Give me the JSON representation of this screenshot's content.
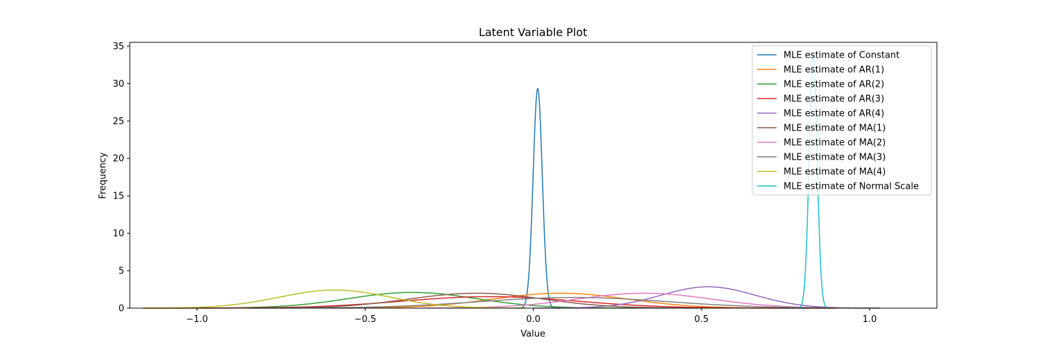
{
  "chart_data": {
    "type": "line",
    "title": "Latent Variable Plot",
    "xlabel": "Value",
    "ylabel": "Frequency",
    "xlim": [
      -1.2,
      1.2
    ],
    "ylim": [
      0,
      35.5
    ],
    "xticks": [
      -1.0,
      -0.5,
      0.0,
      0.5,
      1.0
    ],
    "xtick_labels": [
      "−1.0",
      "−0.5",
      "0.0",
      "0.5",
      "1.0"
    ],
    "yticks": [
      0,
      5,
      10,
      15,
      20,
      25,
      30,
      35
    ],
    "ytick_labels": [
      "0",
      "5",
      "10",
      "15",
      "20",
      "25",
      "30",
      "35"
    ],
    "grid": false,
    "legend_position": "top-right",
    "series": [
      {
        "name": "MLE estimate of Constant",
        "color": "#1f77b4",
        "mean": 0.013,
        "sd": 0.0136,
        "range": [
          -0.05,
          0.08
        ]
      },
      {
        "name": "MLE estimate of AR(1)",
        "color": "#ff7f0e",
        "mean": 0.08,
        "sd": 0.2,
        "range": [
          -0.6,
          0.75
        ]
      },
      {
        "name": "MLE estimate of AR(2)",
        "color": "#2ca02c",
        "mean": -0.36,
        "sd": 0.19,
        "range": [
          -1.0,
          0.3
        ]
      },
      {
        "name": "MLE estimate of AR(3)",
        "color": "#d62728",
        "mean": -0.13,
        "sd": 0.26,
        "range": [
          -1.16,
          0.9
        ]
      },
      {
        "name": "MLE estimate of AR(4)",
        "color": "#9467bd",
        "mean": 0.52,
        "sd": 0.14,
        "range": [
          0.0,
          1.03
        ]
      },
      {
        "name": "MLE estimate of MA(1)",
        "color": "#8c564b",
        "mean": -0.17,
        "sd": 0.2,
        "range": [
          -0.85,
          0.5
        ]
      },
      {
        "name": "MLE estimate of MA(2)",
        "color": "#e377c2",
        "mean": 0.33,
        "sd": 0.2,
        "range": [
          -0.33,
          1.0
        ]
      },
      {
        "name": "MLE estimate of MA(3)",
        "color": "#7f7f7f",
        "mean": 0.12,
        "sd": 0.28,
        "range": [
          -0.8,
          1.03
        ]
      },
      {
        "name": "MLE estimate of MA(4)",
        "color": "#bcbd22",
        "mean": -0.59,
        "sd": 0.165,
        "range": [
          -1.16,
          -0.02
        ]
      },
      {
        "name": "MLE estimate of Normal Scale",
        "color": "#17becf",
        "mean": 0.832,
        "sd": 0.0118,
        "range": [
          0.79,
          0.875
        ]
      }
    ]
  }
}
